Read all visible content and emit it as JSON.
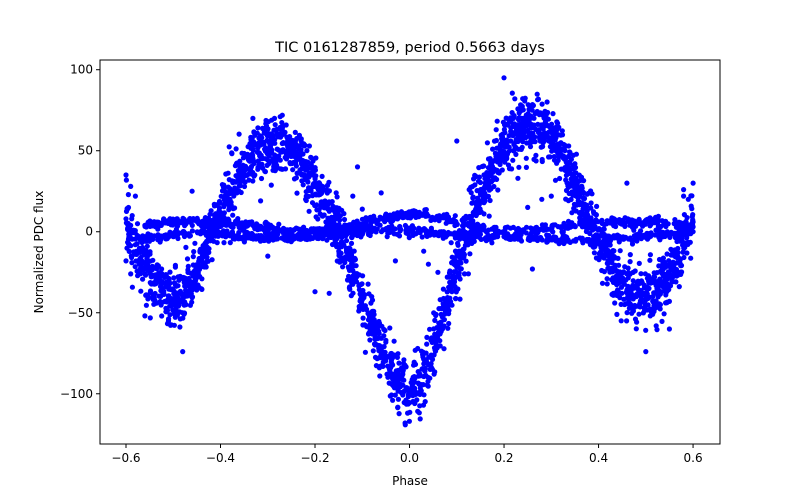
{
  "chart_data": {
    "type": "scatter",
    "title": "TIC 0161287859, period 0.5663 days",
    "xlabel": "Phase",
    "ylabel": "Normalized PDC flux",
    "xlim": [
      -0.655,
      0.657
    ],
    "ylim": [
      -131,
      106
    ],
    "xticks": [
      -0.6,
      -0.4,
      -0.2,
      0.0,
      0.2,
      0.4,
      0.6
    ],
    "xtick_labels": [
      "−0.6",
      "−0.4",
      "−0.2",
      "0.0",
      "0.2",
      "0.4",
      "0.6"
    ],
    "yticks": [
      -100,
      -50,
      0,
      50,
      100
    ],
    "ytick_labels": [
      "−100",
      "−50",
      "0",
      "50",
      "100"
    ],
    "grid": false,
    "legend": "none",
    "marker_color": "#0000ff",
    "series": [
      {
        "name": "main light curve",
        "x": [
          -0.6,
          -0.58,
          -0.56,
          -0.54,
          -0.52,
          -0.5,
          -0.48,
          -0.46,
          -0.44,
          -0.42,
          -0.4,
          -0.38,
          -0.36,
          -0.34,
          -0.32,
          -0.3,
          -0.28,
          -0.26,
          -0.24,
          -0.22,
          -0.2,
          -0.18,
          -0.16,
          -0.14,
          -0.12,
          -0.1,
          -0.08,
          -0.06,
          -0.04,
          -0.02,
          0.0,
          0.02,
          0.04,
          0.06,
          0.08,
          0.1,
          0.12,
          0.14,
          0.16,
          0.18,
          0.2,
          0.22,
          0.24,
          0.26,
          0.28,
          0.3,
          0.32,
          0.34,
          0.36,
          0.38,
          0.4,
          0.42,
          0.44,
          0.46,
          0.48,
          0.5,
          0.52,
          0.54,
          0.56,
          0.58,
          0.6
        ],
        "y": [
          8,
          -8,
          -22,
          -32,
          -38,
          -42,
          -40,
          -32,
          -18,
          -2,
          12,
          25,
          36,
          44,
          49,
          51,
          51,
          50,
          46,
          38,
          28,
          18,
          6,
          -8,
          -24,
          -42,
          -58,
          -72,
          -84,
          -94,
          -98,
          -94,
          -82,
          -64,
          -44,
          -22,
          -4,
          14,
          30,
          44,
          54,
          61,
          65,
          66,
          64,
          58,
          48,
          36,
          22,
          8,
          -6,
          -18,
          -28,
          -36,
          -40,
          -42,
          -38,
          -30,
          -20,
          -8,
          6
        ],
        "spread": 9
      },
      {
        "name": "upper branch",
        "x": [
          -0.56,
          -0.5,
          -0.44,
          -0.38,
          -0.32,
          -0.26,
          -0.2,
          -0.14,
          -0.08,
          -0.02,
          0.02,
          0.08,
          0.14,
          0.2,
          0.26,
          0.32,
          0.38,
          0.44,
          0.5,
          0.56,
          0.6
        ],
        "y": [
          4,
          6,
          6,
          5,
          3,
          1,
          0,
          2,
          6,
          10,
          11,
          8,
          2,
          0,
          1,
          3,
          5,
          6,
          6,
          5,
          3
        ],
        "spread": 1.5
      },
      {
        "name": "lower branch",
        "x": [
          -0.56,
          -0.5,
          -0.44,
          -0.38,
          -0.32,
          -0.26,
          -0.2,
          -0.14,
          -0.08,
          -0.02,
          0.02,
          0.08,
          0.14,
          0.2,
          0.26,
          0.32,
          0.38,
          0.44,
          0.5,
          0.56,
          0.6
        ],
        "y": [
          -4,
          -2,
          0,
          -2,
          -3,
          -4,
          -3,
          -2,
          0,
          1,
          0,
          -2,
          -3,
          -3,
          -4,
          -5,
          -5,
          -4,
          -2,
          -1,
          0
        ],
        "spread": 1.5
      }
    ],
    "outliers": {
      "x": [
        -0.6,
        -0.59,
        -0.58,
        -0.6,
        -0.59,
        -0.48,
        -0.46,
        -0.38,
        -0.37,
        -0.3,
        -0.22,
        -0.2,
        -0.17,
        -0.12,
        -0.11,
        -0.1,
        -0.08,
        -0.06,
        -0.05,
        -0.03,
        0.03,
        0.04,
        0.06,
        0.08,
        0.1,
        0.2,
        0.23,
        0.25,
        0.26,
        0.28,
        0.3,
        0.32,
        0.35,
        0.46,
        0.55,
        0.58,
        0.6,
        0.58,
        0.59,
        0.5
      ],
      "y": [
        35,
        28,
        22,
        -18,
        -26,
        -74,
        25,
        20,
        27,
        -15,
        20,
        -37,
        -38,
        22,
        40,
        14,
        -40,
        24,
        8,
        -18,
        -12,
        -20,
        -25,
        -28,
        56,
        95,
        2,
        15,
        -23,
        20,
        22,
        50,
        42,
        30,
        -60,
        22,
        30,
        26,
        20,
        -74
      ]
    }
  }
}
